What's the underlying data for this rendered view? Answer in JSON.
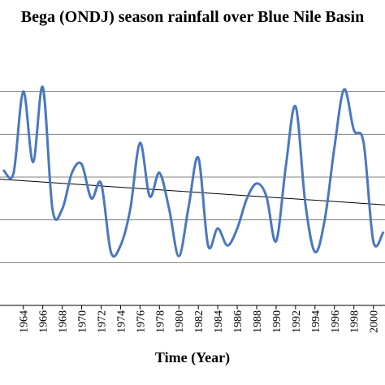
{
  "chart_data": {
    "type": "line",
    "title": "Bega (ONDJ) season rainfall over Blue Nile Basin",
    "xlabel": "Time (Year)",
    "ylabel": "",
    "x_tick_labels": [
      "1964",
      "1966",
      "1968",
      "1970",
      "1972",
      "1974",
      "1976",
      "1978",
      "1980",
      "1982",
      "1984",
      "1986",
      "1988",
      "1990",
      "1992",
      "1994",
      "1996",
      "1998",
      "2000"
    ],
    "xlim": [
      1961.6,
      2001.2
    ],
    "ylim": [
      -3,
      3
    ],
    "yticks": [
      -2,
      -1,
      0,
      1,
      2
    ],
    "grid": "horizontal",
    "legend": "none",
    "colors": {
      "series": "#4a78bf",
      "trend": "#000000",
      "grid": "#808080",
      "axis": "#000000"
    },
    "series": [
      {
        "x": [
          1962,
          1963,
          1964,
          1965,
          1966,
          1967,
          1968,
          1969,
          1970,
          1971,
          1972,
          1973,
          1974,
          1975,
          1976,
          1977,
          1978,
          1979,
          1980,
          1981,
          1982,
          1983,
          1984,
          1985,
          1986,
          1987,
          1988,
          1989,
          1990,
          1991,
          1992,
          1993,
          1994,
          1995,
          1996,
          1997,
          1998,
          1999,
          2000,
          2001
        ],
        "values": [
          0.15,
          0.1,
          2.0,
          0.35,
          2.1,
          -0.75,
          -0.75,
          0.1,
          0.3,
          -0.5,
          -0.15,
          -1.75,
          -1.6,
          -0.75,
          0.8,
          -0.45,
          0.1,
          -0.75,
          -1.85,
          -0.7,
          0.45,
          -1.6,
          -1.2,
          -1.6,
          -1.2,
          -0.5,
          -0.15,
          -0.45,
          -1.5,
          0.25,
          1.65,
          -0.6,
          -1.75,
          -1.0,
          0.7,
          2.05,
          1.1,
          0.8,
          -1.5,
          -1.3
        ]
      }
    ],
    "trend_line": {
      "x": [
        1961.6,
        2001.2
      ],
      "values": [
        -0.05,
        -0.65
      ]
    }
  }
}
